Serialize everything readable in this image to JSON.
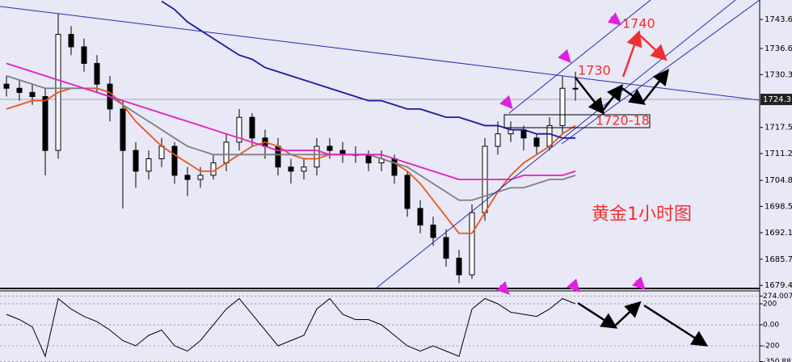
{
  "chart_data": {
    "type": "candlestick",
    "open": [
      1728,
      1727,
      1726,
      1725,
      1712,
      1740,
      1737,
      1733,
      1728,
      1722,
      1712,
      1707,
      1710,
      1713,
      1706,
      1705,
      1706,
      1709,
      1714,
      1720,
      1715,
      1713,
      1708,
      1707,
      1708,
      1713,
      1712,
      1711,
      1711,
      1709,
      1710,
      1706,
      1698,
      1694,
      1691,
      1686,
      1682,
      1697,
      1713,
      1716,
      1717,
      1715,
      1713,
      1718,
      1727
    ],
    "high": [
      1730,
      1729,
      1728,
      1727,
      1745,
      1742,
      1739,
      1735,
      1730,
      1724,
      1714,
      1712,
      1715,
      1714,
      1708,
      1708,
      1711,
      1716,
      1722,
      1721,
      1717,
      1715,
      1710,
      1710,
      1715,
      1715,
      1714,
      1713,
      1712,
      1712,
      1711,
      1707,
      1700,
      1696,
      1693,
      1688,
      1699,
      1715,
      1719,
      1719,
      1718,
      1716,
      1720,
      1730,
      1731
    ],
    "low": [
      1725,
      1724,
      1723,
      1706,
      1710,
      1735,
      1731,
      1726,
      1719,
      1698,
      1703,
      1705,
      1708,
      1704,
      1701,
      1703,
      1705,
      1707,
      1712,
      1713,
      1710,
      1706,
      1704,
      1705,
      1706,
      1710,
      1709,
      1709,
      1707,
      1707,
      1704,
      1696,
      1692,
      1689,
      1684,
      1680,
      1681,
      1695,
      1711,
      1714,
      1712,
      1711,
      1712,
      1716,
      1724
    ],
    "close": [
      1727,
      1726,
      1725,
      1712,
      1740,
      1737,
      1733,
      1728,
      1722,
      1712,
      1707,
      1710,
      1713,
      1706,
      1705,
      1706,
      1709,
      1714,
      1720,
      1715,
      1713,
      1708,
      1707,
      1708,
      1713,
      1712,
      1711,
      1711,
      1709,
      1710,
      1706,
      1698,
      1694,
      1691,
      1686,
      1682,
      1697,
      1713,
      1716,
      1717,
      1715,
      1713,
      1718,
      1727,
      1727
    ],
    "lines": [
      {
        "color": "#e8571a",
        "values": [
          1722,
          1723,
          1724,
          1724,
          1726,
          1727,
          1727,
          1727,
          1726,
          1723,
          1719,
          1716,
          1713,
          1711,
          1709,
          1707,
          1707,
          1709,
          1711,
          1713,
          1714,
          1713,
          1711,
          1710,
          1710,
          1711,
          1711,
          1711,
          1711,
          1710,
          1709,
          1707,
          1704,
          1700,
          1696,
          1692,
          1692,
          1697,
          1702,
          1706,
          1709,
          1711,
          1713,
          1716,
          1718
        ]
      },
      {
        "color": "#808080",
        "values": [
          1730,
          1729,
          1728,
          1727,
          1727,
          1727,
          1727,
          1726,
          1725,
          1723,
          1721,
          1719,
          1717,
          1715,
          1713,
          1712,
          1711,
          1711,
          1711,
          1711,
          1711,
          1711,
          1711,
          1711,
          1711,
          1711,
          1711,
          1711,
          1711,
          1710,
          1709,
          1708,
          1706,
          1704,
          1702,
          1700,
          1700,
          1701,
          1702,
          1703,
          1703,
          1704,
          1705,
          1705,
          1706
        ]
      },
      {
        "color": "#e020c0",
        "values": [
          1733,
          1732,
          1731,
          1730,
          1729,
          1728,
          1727,
          1726,
          1725,
          1724,
          1723,
          1722,
          1721,
          1720,
          1719,
          1718,
          1717,
          1716,
          1715,
          1714,
          1713,
          1712,
          1712,
          1712,
          1712,
          1711,
          1711,
          1711,
          1711,
          1711,
          1710,
          1709,
          1708,
          1707,
          1706,
          1705,
          1705,
          1705,
          1705,
          1705,
          1706,
          1706,
          1706,
          1706,
          1707
        ]
      },
      {
        "color": "#1a1aa0",
        "values": [
          null,
          null,
          null,
          null,
          null,
          null,
          null,
          null,
          null,
          null,
          null,
          null,
          1748,
          1746,
          1743,
          1741,
          1739,
          1737,
          1735,
          1734,
          1732,
          1731,
          1730,
          1729,
          1728,
          1727,
          1726,
          1725,
          1724,
          1724,
          1723,
          1722,
          1722,
          1721,
          1720,
          1720,
          1719,
          1718,
          1718,
          1717,
          1717,
          1716,
          1716,
          1715,
          1715
        ]
      }
    ],
    "ylim": [
      1678.7,
      1748.3
    ],
    "yticks": [
      {
        "value": 1743.6,
        "label": "1743.60"
      },
      {
        "value": 1736.6,
        "label": "1736.60"
      },
      {
        "value": 1730.3,
        "label": "1730.30"
      },
      1717.55,
      1711.25,
      {
        "value": 1704.8,
        "label": "1704.80"
      },
      {
        "value": 1698.5,
        "label": "1698.50"
      },
      1692.15,
      1685.75,
      1679.45
    ],
    "last_price": 1724.31,
    "oscillator": {
      "color": "#000000",
      "values": [
        100,
        50,
        -20,
        -300,
        250,
        150,
        80,
        30,
        -50,
        -150,
        -200,
        -100,
        -50,
        -200,
        -250,
        -150,
        0,
        150,
        250,
        100,
        -50,
        -200,
        -150,
        -100,
        150,
        250,
        100,
        50,
        50,
        0,
        -100,
        -200,
        -250,
        -200,
        -250,
        -300,
        150,
        250,
        200,
        120,
        100,
        80,
        150,
        250,
        200
      ],
      "ylim": [
        -354,
        323
      ],
      "yticks": [
        274.0076,
        200,
        {
          "value": 0,
          "label": "0.00"
        },
        -200,
        -350.881
      ]
    },
    "annotations": [
      "1740",
      "1730",
      "1720-18",
      "黄金1小时图"
    ]
  }
}
